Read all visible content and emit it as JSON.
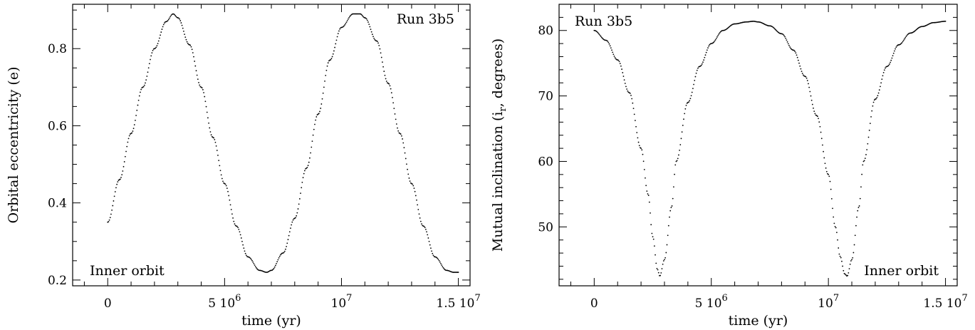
{
  "chart_data": [
    {
      "type": "scatter",
      "annotations": [
        "Run 3b5",
        "Inner orbit"
      ],
      "xlabel": "time (yr)",
      "ylabel": "Orbital eccentricity (e)",
      "xlim": [
        -1500000,
        15500000
      ],
      "ylim": [
        0.185,
        0.915
      ],
      "x_ticks": [
        {
          "value": 0,
          "label": "0"
        },
        {
          "value": 5000000,
          "label": "5 10",
          "sup": "6"
        },
        {
          "value": 10000000,
          "label": "10",
          "sup": "7"
        },
        {
          "value": 15000000,
          "label": "1.5 10",
          "sup": "7"
        }
      ],
      "y_ticks": [
        {
          "value": 0.2,
          "label": "0.2"
        },
        {
          "value": 0.4,
          "label": "0.4"
        },
        {
          "value": 0.6,
          "label": "0.6"
        },
        {
          "value": 0.8,
          "label": "0.8"
        }
      ],
      "series": [
        {
          "x": [
            0,
            500000,
            1000000,
            1500000,
            2000000,
            2500000,
            2800000,
            3000000,
            3500000,
            4000000,
            4500000,
            5000000,
            5500000,
            6000000,
            6500000,
            6800000,
            7000000,
            7500000,
            8000000,
            8500000,
            9000000,
            9500000,
            10000000,
            10500000,
            10800000,
            11000000,
            11500000,
            12000000,
            12500000,
            13000000,
            13500000,
            14000000,
            14500000,
            14800000,
            15000000
          ],
          "y": [
            0.35,
            0.46,
            0.58,
            0.7,
            0.8,
            0.87,
            0.89,
            0.88,
            0.81,
            0.7,
            0.57,
            0.45,
            0.34,
            0.26,
            0.225,
            0.22,
            0.225,
            0.27,
            0.36,
            0.49,
            0.63,
            0.77,
            0.855,
            0.89,
            0.89,
            0.88,
            0.82,
            0.71,
            0.58,
            0.45,
            0.34,
            0.26,
            0.225,
            0.22,
            0.22
          ]
        }
      ]
    },
    {
      "type": "scatter",
      "annotations": [
        "Run 3b5",
        "Inner orbit"
      ],
      "xlabel": "time (yr)",
      "ylabel": "Mutual inclination (i",
      "ylabel_sub": "r",
      "ylabel_tail": ", degrees)",
      "xlim": [
        -1500000,
        15500000
      ],
      "ylim": [
        41,
        84
      ],
      "x_ticks": [
        {
          "value": 0,
          "label": "0"
        },
        {
          "value": 5000000,
          "label": "5 10",
          "sup": "6"
        },
        {
          "value": 10000000,
          "label": "10",
          "sup": "7"
        },
        {
          "value": 15000000,
          "label": "1.5 10",
          "sup": "7"
        }
      ],
      "y_ticks": [
        {
          "value": 50,
          "label": "50"
        },
        {
          "value": 60,
          "label": "60"
        },
        {
          "value": 70,
          "label": "70"
        },
        {
          "value": 80,
          "label": "80"
        }
      ],
      "series": [
        {
          "x": [
            0,
            500000,
            1000000,
            1500000,
            2000000,
            2300000,
            2500000,
            2700000,
            2800000,
            3000000,
            3300000,
            3500000,
            4000000,
            4500000,
            5000000,
            5500000,
            6000000,
            6500000,
            6800000,
            7000000,
            7500000,
            8000000,
            8500000,
            9000000,
            9500000,
            10000000,
            10300000,
            10500000,
            10700000,
            10800000,
            11000000,
            11300000,
            11500000,
            12000000,
            12500000,
            13000000,
            13500000,
            14000000,
            14500000,
            15000000
          ],
          "y": [
            80,
            78.5,
            75.5,
            70.5,
            62,
            55,
            48.5,
            43.5,
            42.5,
            45,
            53,
            60,
            69,
            74.5,
            78,
            80,
            81,
            81.3,
            81.4,
            81.3,
            80.7,
            79.5,
            77,
            73,
            67,
            58,
            50,
            45.5,
            42.8,
            42.5,
            45,
            53,
            60,
            69.5,
            74.5,
            77.8,
            79.6,
            80.6,
            81.2,
            81.4
          ]
        }
      ]
    }
  ]
}
